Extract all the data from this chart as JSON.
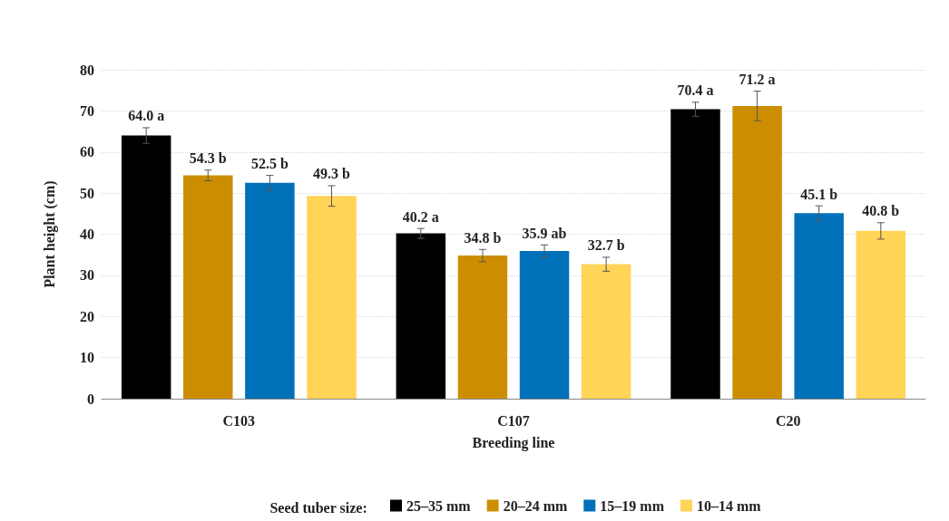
{
  "chart_data": {
    "type": "bar",
    "xlabel": "Breeding line",
    "ylabel": "Plant height (cm)",
    "legend_title": "Seed tuber size:",
    "categories": [
      "C103",
      "C107",
      "C20"
    ],
    "series": [
      {
        "name": "25–35 mm",
        "color": "#000000",
        "values": [
          64.0,
          40.2,
          70.4
        ],
        "errors": [
          1.9,
          1.2,
          1.7
        ],
        "value_labels": [
          "64.0 a",
          "40.2 a",
          "70.4 a"
        ]
      },
      {
        "name": "20–24 mm",
        "color": "#cc8e00",
        "values": [
          54.3,
          34.8,
          71.2
        ],
        "errors": [
          1.3,
          1.5,
          3.6
        ],
        "value_labels": [
          "54.3 b",
          "34.8 b",
          "71.2 a"
        ]
      },
      {
        "name": "15–19 mm",
        "color": "#0070b8",
        "values": [
          52.5,
          35.9,
          45.1
        ],
        "errors": [
          1.8,
          1.5,
          1.8
        ],
        "value_labels": [
          "52.5 b",
          "35.9 ab",
          "45.1 b"
        ]
      },
      {
        "name": "10–14 mm",
        "color": "#ffd457",
        "values": [
          49.3,
          32.7,
          40.8
        ],
        "errors": [
          2.5,
          1.7,
          2.0
        ],
        "value_labels": [
          "49.3 b",
          "32.7 b",
          "40.8 b"
        ]
      }
    ],
    "ylim": [
      0,
      80
    ],
    "yticks": [
      0,
      10,
      20,
      30,
      40,
      50,
      60,
      70,
      80
    ],
    "grid": "y",
    "legend": "bottom"
  }
}
